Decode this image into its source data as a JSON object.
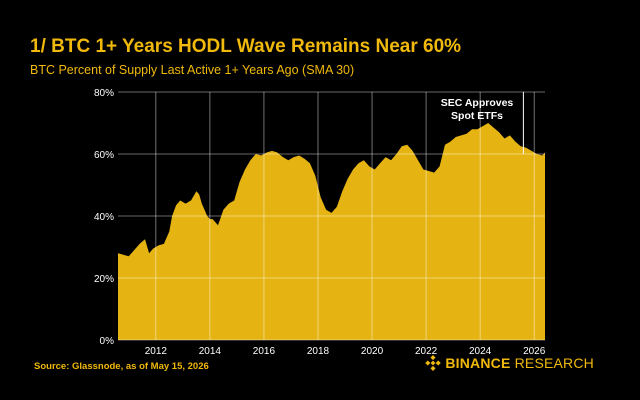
{
  "header": {
    "title": "1/ BTC 1+ Years HODL Wave Remains Near 60%",
    "subtitle": "BTC Percent of Supply Last Active 1+ Years Ago (SMA 30)"
  },
  "footer": {
    "source": "Source: Glassnode, as of May 15, 2026",
    "brand_bold": "BINANCE",
    "brand_light": "RESEARCH",
    "brand_icon": "binance-diamond-icon"
  },
  "colors": {
    "accent": "#f0b90b",
    "fill": "#e6b412",
    "background": "#000000",
    "grid": "#ffffff"
  },
  "chart_data": {
    "type": "area",
    "title": "1/ BTC 1+ Years HODL Wave Remains Near 60%",
    "subtitle": "BTC Percent of Supply Last Active 1+ Years Ago (SMA 30)",
    "xlabel": "",
    "ylabel": "",
    "xlim": [
      2010.6,
      2026.4
    ],
    "ylim": [
      0,
      80
    ],
    "x_ticks": [
      2012,
      2014,
      2016,
      2018,
      2020,
      2022,
      2024,
      2026
    ],
    "y_ticks": [
      0,
      20,
      40,
      60,
      80
    ],
    "y_tick_labels": [
      "0%",
      "20%",
      "40%",
      "60%",
      "80%"
    ],
    "grid": true,
    "annotation": {
      "x": 2025.6,
      "y": 80,
      "label_line1": "SEC Approves",
      "label_line2": "Spot ETFs"
    },
    "series": [
      {
        "x": [
          2010.6,
          2010.8,
          2011.0,
          2011.2,
          2011.4,
          2011.6,
          2011.75,
          2011.9,
          2012.1,
          2012.3,
          2012.5,
          2012.6,
          2012.75,
          2012.9,
          2013.1,
          2013.3,
          2013.5,
          2013.6,
          2013.7,
          2013.8,
          2013.9,
          2014.0,
          2014.1,
          2014.3,
          2014.5,
          2014.7,
          2014.9,
          2015.1,
          2015.3,
          2015.5,
          2015.7,
          2015.9,
          2016.1,
          2016.3,
          2016.5,
          2016.7,
          2016.9,
          2017.1,
          2017.3,
          2017.5,
          2017.7,
          2017.9,
          2018.1,
          2018.3,
          2018.5,
          2018.7,
          2018.9,
          2019.1,
          2019.3,
          2019.5,
          2019.7,
          2019.9,
          2020.1,
          2020.3,
          2020.5,
          2020.7,
          2020.9,
          2021.1,
          2021.3,
          2021.5,
          2021.7,
          2021.9,
          2022.1,
          2022.3,
          2022.5,
          2022.7,
          2022.9,
          2023.1,
          2023.3,
          2023.5,
          2023.7,
          2023.9,
          2024.1,
          2024.3,
          2024.5,
          2024.7,
          2024.9,
          2025.1,
          2025.3,
          2025.5,
          2025.7,
          2025.9,
          2026.1,
          2026.3,
          2026.4
        ],
        "y": [
          28,
          27.5,
          27,
          29,
          31,
          32.5,
          28,
          29.5,
          30.5,
          31,
          35,
          40,
          43.5,
          45,
          44,
          45,
          48,
          47,
          44,
          42,
          40,
          39,
          39,
          37,
          42,
          44,
          45,
          51,
          55,
          58,
          60,
          59.5,
          60.5,
          61,
          60.5,
          59,
          58,
          59,
          59.5,
          58.5,
          57,
          53,
          46,
          42,
          41,
          43,
          48,
          52,
          55,
          57,
          58,
          56,
          55,
          57,
          59,
          58,
          60,
          62.5,
          63,
          61,
          58,
          55,
          54.5,
          54,
          56,
          63,
          64,
          65.5,
          66,
          66.5,
          68,
          68,
          69,
          70,
          68.5,
          67,
          65,
          66,
          64,
          62.5,
          62,
          61,
          60,
          59.5,
          60.5
        ]
      }
    ]
  }
}
